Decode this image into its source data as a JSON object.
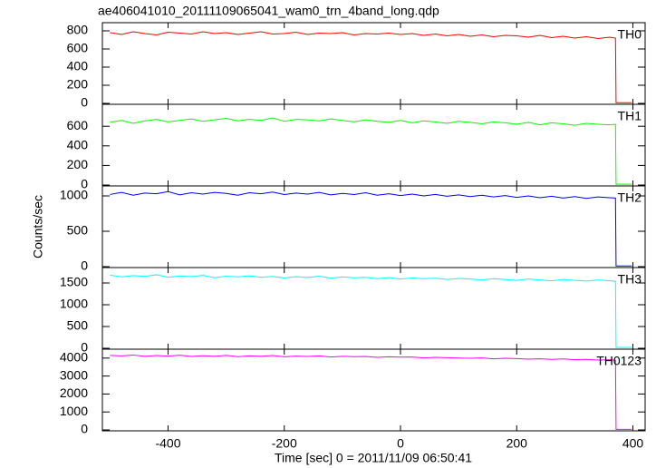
{
  "title": "ae406041010_20111109065041_wam0_trn_4band_long.qdp",
  "xlabel": "Time [sec] 0 = 2011/11/09 06:50:41",
  "ylabel": "Counts/sec",
  "chart_data": [
    {
      "type": "line",
      "xlim": [
        -513,
        421
      ],
      "xticks": [
        -400,
        -200,
        0,
        200,
        400
      ],
      "ylim": [
        -10,
        890
      ],
      "yticks": [
        0,
        200,
        400,
        600,
        800
      ],
      "x": [
        -500,
        -480,
        -460,
        -440,
        -420,
        -400,
        -380,
        -360,
        -340,
        -320,
        -300,
        -280,
        -260,
        -240,
        -220,
        -200,
        -180,
        -160,
        -140,
        -120,
        -100,
        -80,
        -60,
        -40,
        -20,
        0,
        20,
        40,
        60,
        80,
        100,
        120,
        140,
        160,
        180,
        200,
        220,
        240,
        260,
        280,
        300,
        320,
        340,
        360,
        370,
        371,
        398
      ],
      "series": [
        {
          "name": "TH0",
          "color": "#ff0000",
          "values": [
            780,
            760,
            790,
            770,
            755,
            785,
            775,
            765,
            790,
            770,
            780,
            760,
            775,
            790,
            765,
            770,
            785,
            760,
            775,
            770,
            780,
            755,
            770,
            765,
            775,
            760,
            770,
            750,
            765,
            745,
            760,
            740,
            755,
            735,
            750,
            745,
            730,
            750,
            725,
            740,
            720,
            735,
            715,
            730,
            720,
            8,
            8
          ]
        }
      ]
    },
    {
      "type": "line",
      "xlim": [
        -513,
        421
      ],
      "xticks": [
        -400,
        -200,
        0,
        200,
        400
      ],
      "ylim": [
        -9,
        824
      ],
      "yticks": [
        0,
        200,
        400,
        600
      ],
      "x": [
        -500,
        -480,
        -460,
        -440,
        -420,
        -400,
        -380,
        -360,
        -340,
        -320,
        -300,
        -280,
        -260,
        -240,
        -220,
        -200,
        -180,
        -160,
        -140,
        -120,
        -100,
        -80,
        -60,
        -40,
        -20,
        0,
        20,
        40,
        60,
        80,
        100,
        120,
        140,
        160,
        180,
        200,
        220,
        240,
        260,
        280,
        300,
        320,
        340,
        360,
        370,
        371,
        398
      ],
      "series": [
        {
          "name": "TH1",
          "color": "#00ff00",
          "values": [
            640,
            660,
            630,
            655,
            670,
            645,
            660,
            675,
            650,
            665,
            680,
            655,
            670,
            660,
            685,
            650,
            670,
            665,
            655,
            675,
            660,
            645,
            665,
            650,
            640,
            660,
            635,
            655,
            645,
            630,
            650,
            640,
            625,
            645,
            635,
            620,
            640,
            615,
            635,
            625,
            610,
            630,
            620,
            615,
            620,
            8,
            8
          ]
        }
      ]
    },
    {
      "type": "line",
      "xlim": [
        -513,
        421
      ],
      "xticks": [
        -400,
        -200,
        0,
        200,
        400
      ],
      "ylim": [
        -13,
        1141
      ],
      "yticks": [
        0,
        500,
        1000
      ],
      "x": [
        -500,
        -480,
        -460,
        -440,
        -420,
        -400,
        -380,
        -360,
        -340,
        -320,
        -300,
        -280,
        -260,
        -240,
        -220,
        -200,
        -180,
        -160,
        -140,
        -120,
        -100,
        -80,
        -60,
        -40,
        -20,
        0,
        20,
        40,
        60,
        80,
        100,
        120,
        140,
        160,
        180,
        200,
        220,
        240,
        260,
        280,
        300,
        320,
        340,
        360,
        370,
        371,
        398
      ],
      "series": [
        {
          "name": "TH2",
          "color": "#0000ff",
          "values": [
            1020,
            1050,
            1010,
            1040,
            1030,
            1060,
            1015,
            1045,
            1025,
            1050,
            1035,
            1010,
            1045,
            1030,
            1055,
            1020,
            1040,
            1025,
            1050,
            1015,
            1035,
            1020,
            1045,
            1010,
            1030,
            1005,
            1025,
            1000,
            1020,
            995,
            1015,
            990,
            1010,
            985,
            1005,
            980,
            1000,
            975,
            995,
            970,
            990,
            965,
            985,
            975,
            970,
            10,
            10
          ]
        }
      ]
    },
    {
      "type": "line",
      "xlim": [
        -513,
        421
      ],
      "xticks": [
        -400,
        -200,
        0,
        200,
        400
      ],
      "ylim": [
        -21,
        1854
      ],
      "yticks": [
        0,
        500,
        1000,
        1500
      ],
      "x": [
        -500,
        -480,
        -460,
        -440,
        -420,
        -400,
        -380,
        -360,
        -340,
        -320,
        -300,
        -280,
        -260,
        -240,
        -220,
        -200,
        -180,
        -160,
        -140,
        -120,
        -100,
        -80,
        -60,
        -40,
        -20,
        0,
        20,
        40,
        60,
        80,
        100,
        120,
        140,
        160,
        180,
        200,
        220,
        240,
        260,
        280,
        300,
        320,
        340,
        360,
        370,
        371,
        398
      ],
      "series": [
        {
          "name": "TH3",
          "color": "#00ffff",
          "values": [
            1680,
            1640,
            1670,
            1650,
            1690,
            1630,
            1660,
            1645,
            1675,
            1620,
            1655,
            1640,
            1665,
            1630,
            1650,
            1615,
            1645,
            1625,
            1655,
            1610,
            1640,
            1620,
            1630,
            1600,
            1625,
            1590,
            1615,
            1600,
            1610,
            1580,
            1605,
            1590,
            1570,
            1600,
            1580,
            1560,
            1590,
            1570,
            1550,
            1580,
            1560,
            1545,
            1570,
            1550,
            1540,
            20,
            20
          ]
        }
      ]
    },
    {
      "type": "line",
      "xlim": [
        -513,
        421
      ],
      "xticks": [
        -400,
        -200,
        0,
        200,
        400
      ],
      "ylim": [
        -50,
        4495
      ],
      "yticks": [
        0,
        1000,
        2000,
        3000,
        4000
      ],
      "x": [
        -500,
        -480,
        -460,
        -440,
        -420,
        -400,
        -380,
        -360,
        -340,
        -320,
        -300,
        -280,
        -260,
        -240,
        -220,
        -200,
        -180,
        -160,
        -140,
        -120,
        -100,
        -80,
        -60,
        -40,
        -20,
        0,
        20,
        40,
        60,
        80,
        100,
        120,
        140,
        160,
        180,
        200,
        220,
        240,
        260,
        280,
        300,
        320,
        340,
        360,
        370,
        371,
        398
      ],
      "series": [
        {
          "name": "TH0123",
          "color": "#ff00ff",
          "values": [
            4150,
            4120,
            4170,
            4100,
            4140,
            4110,
            4160,
            4090,
            4130,
            4100,
            4150,
            4080,
            4120,
            4100,
            4140,
            4070,
            4110,
            4090,
            4120,
            4060,
            4100,
            4080,
            4090,
            4040,
            4070,
            4050,
            4060,
            4010,
            4040,
            4020,
            4000,
            3990,
            4010,
            3960,
            3990,
            3970,
            3940,
            3960,
            3930,
            3950,
            3910,
            3930,
            3890,
            3910,
            3880,
            30,
            30
          ]
        }
      ]
    }
  ]
}
